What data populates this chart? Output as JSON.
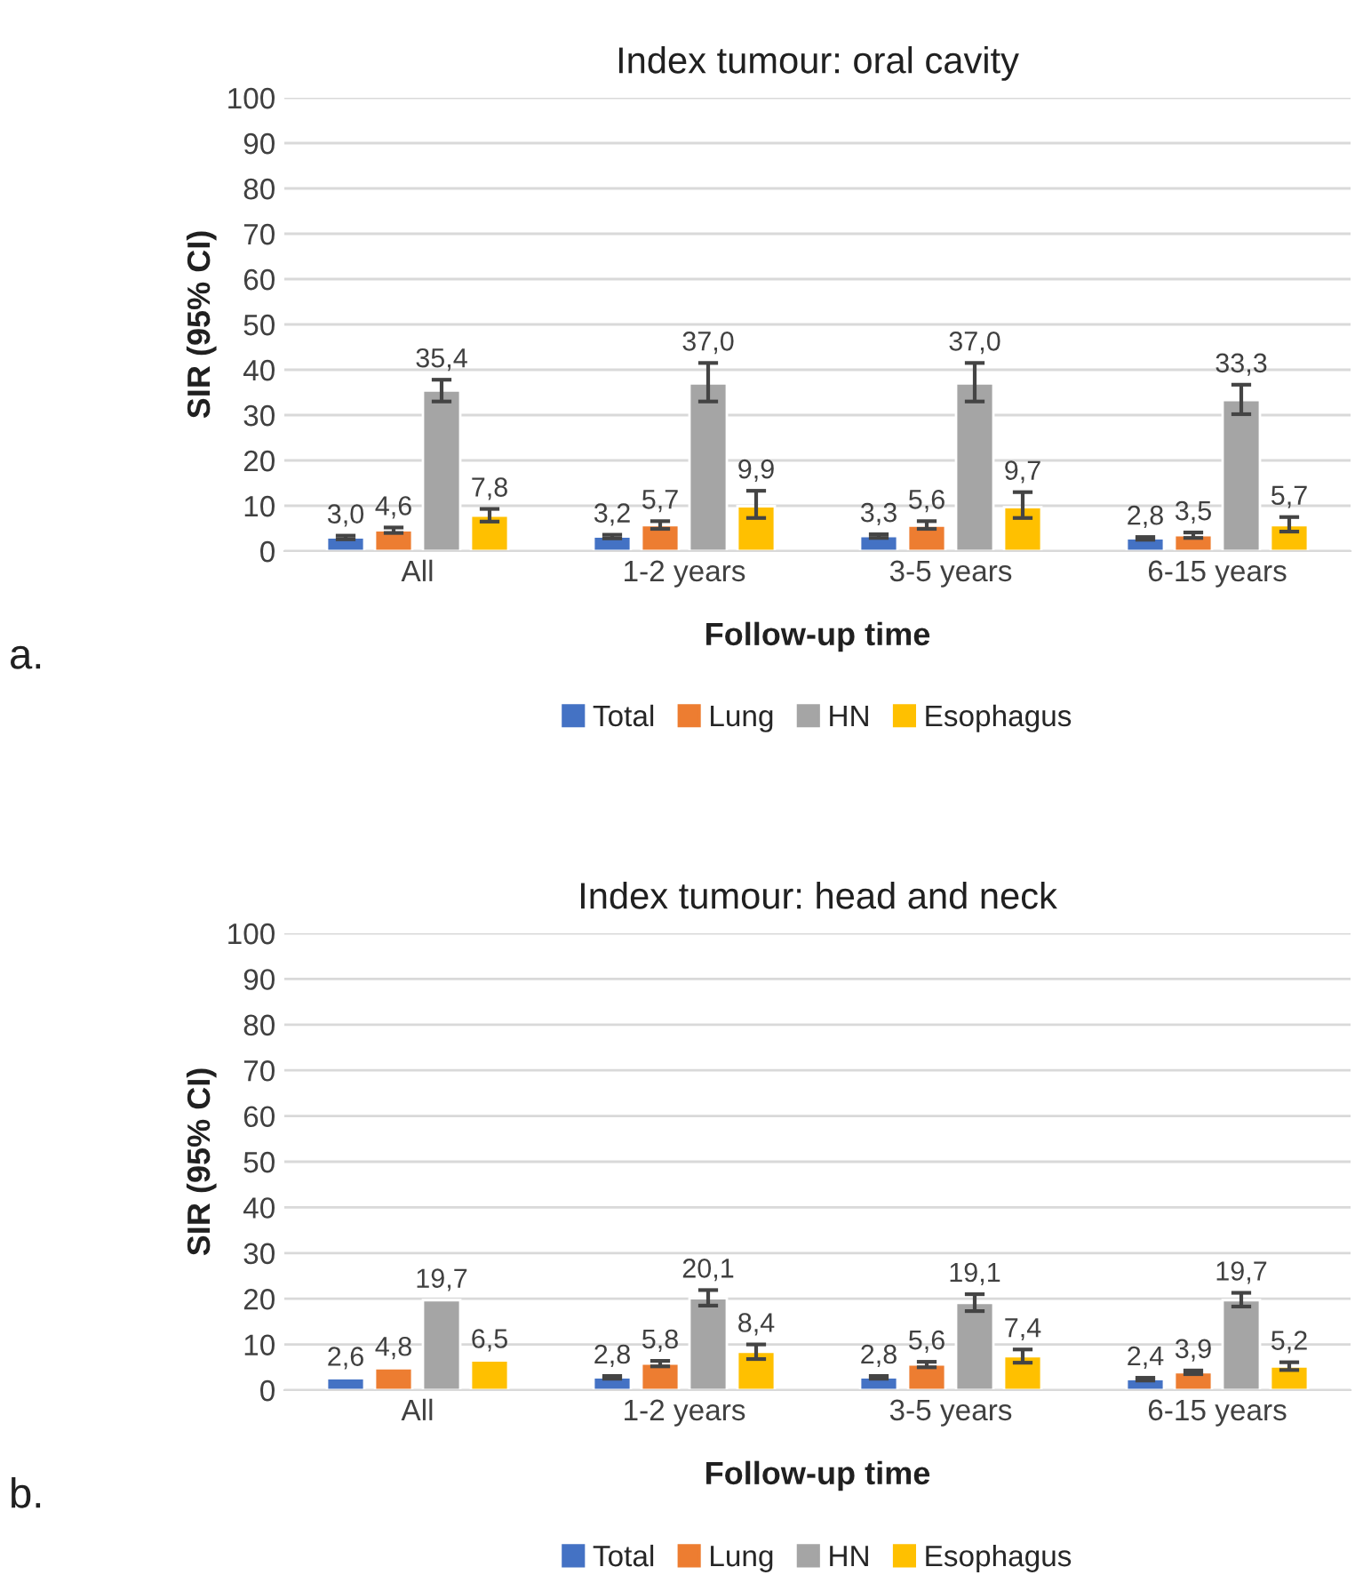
{
  "chart_data": [
    {
      "type": "bar",
      "title": "Index tumour: oral cavity",
      "xlabel": "Follow-up time",
      "ylabel": "SIR (95% CI)",
      "categories": [
        "All",
        "1-2 years",
        "3-5 years",
        "6-15 years"
      ],
      "ylim": [
        0,
        100
      ],
      "yticks": [
        0,
        10,
        20,
        30,
        40,
        50,
        60,
        70,
        80,
        90,
        100
      ],
      "grid": "y",
      "legend": "bottom",
      "annotations": [
        "a."
      ],
      "series": [
        {
          "name": "Total",
          "color": "#4472c4",
          "values": [
            3.0,
            3.2,
            3.3,
            2.8
          ],
          "value_labels": [
            "3,0",
            "3,2",
            "3,3",
            "2,8"
          ],
          "errors": [
            [
              2.6,
              3.4
            ],
            [
              2.8,
              3.6
            ],
            [
              2.9,
              3.7
            ],
            [
              2.5,
              3.1
            ]
          ]
        },
        {
          "name": "Lung",
          "color": "#ed7d31",
          "values": [
            4.6,
            5.7,
            5.6,
            3.5
          ],
          "value_labels": [
            "4,6",
            "5,7",
            "5,6",
            "3,5"
          ],
          "errors": [
            [
              4.0,
              5.2
            ],
            [
              4.9,
              6.6
            ],
            [
              4.9,
              6.6
            ],
            [
              2.9,
              4.1
            ]
          ]
        },
        {
          "name": "HN",
          "color": "#a5a5a5",
          "values": [
            35.4,
            37.0,
            37.0,
            33.3
          ],
          "value_labels": [
            "35,4",
            "37,0",
            "37,0",
            "33,3"
          ],
          "errors": [
            [
              33.0,
              37.8
            ],
            [
              33.0,
              41.5
            ],
            [
              33.0,
              41.5
            ],
            [
              30.2,
              36.7
            ]
          ]
        },
        {
          "name": "Esophagus",
          "color": "#ffc000",
          "values": [
            7.8,
            9.9,
            9.7,
            5.7
          ],
          "value_labels": [
            "7,8",
            "9,9",
            "9,7",
            "5,7"
          ],
          "errors": [
            [
              6.5,
              9.3
            ],
            [
              7.3,
              13.3
            ],
            [
              7.3,
              13.0
            ],
            [
              4.3,
              7.5
            ]
          ]
        }
      ]
    },
    {
      "type": "bar",
      "title": "Index tumour: head and neck",
      "xlabel": "Follow-up time",
      "ylabel": "SIR (95% CI)",
      "categories": [
        "All",
        "1-2 years",
        "3-5 years",
        "6-15 years"
      ],
      "ylim": [
        0,
        100
      ],
      "yticks": [
        0,
        10,
        20,
        30,
        40,
        50,
        60,
        70,
        80,
        90,
        100
      ],
      "grid": "y",
      "legend": "bottom",
      "annotations": [
        "b."
      ],
      "series": [
        {
          "name": "Total",
          "color": "#4472c4",
          "values": [
            2.6,
            2.8,
            2.8,
            2.4
          ],
          "value_labels": [
            "2,6",
            "2,8",
            "2,8",
            "2,4"
          ],
          "errors": [
            null,
            [
              2.5,
              3.1
            ],
            [
              2.5,
              3.1
            ],
            [
              2.1,
              2.7
            ]
          ]
        },
        {
          "name": "Lung",
          "color": "#ed7d31",
          "values": [
            4.8,
            5.8,
            5.6,
            3.9
          ],
          "value_labels": [
            "4,8",
            "5,8",
            "5,6",
            "3,9"
          ],
          "errors": [
            null,
            [
              5.2,
              6.4
            ],
            [
              5.0,
              6.2
            ],
            [
              3.5,
              4.3
            ]
          ]
        },
        {
          "name": "HN",
          "color": "#a5a5a5",
          "values": [
            19.7,
            20.1,
            19.1,
            19.7
          ],
          "value_labels": [
            "19,7",
            "20,1",
            "19,1",
            "19,7"
          ],
          "errors": [
            null,
            [
              18.5,
              21.9
            ],
            [
              17.3,
              21.0
            ],
            [
              18.3,
              21.3
            ]
          ]
        },
        {
          "name": "Esophagus",
          "color": "#ffc000",
          "values": [
            6.5,
            8.4,
            7.4,
            5.2
          ],
          "value_labels": [
            "6,5",
            "8,4",
            "7,4",
            "5,2"
          ],
          "errors": [
            null,
            [
              6.8,
              10.0
            ],
            [
              6.0,
              8.9
            ],
            [
              4.4,
              6.1
            ]
          ]
        }
      ]
    }
  ]
}
